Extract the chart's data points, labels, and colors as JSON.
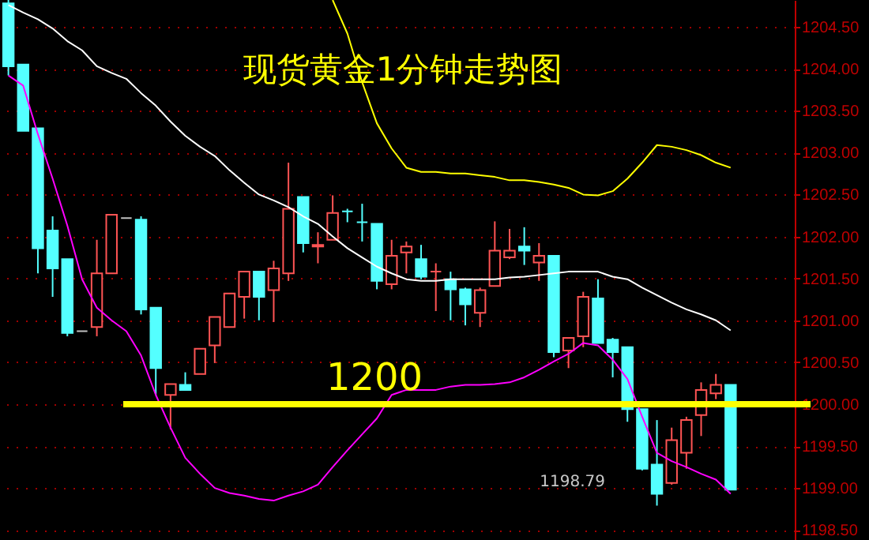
{
  "chart_data": {
    "type": "candlestick",
    "title": "现货黄金1分钟走势图",
    "categories": [
      null,
      null,
      null,
      null,
      null,
      null,
      null,
      null,
      null,
      null,
      null,
      null,
      null,
      null,
      null,
      null,
      null,
      null,
      null,
      null,
      null,
      null,
      null,
      null,
      null,
      null,
      null,
      null,
      null,
      null,
      null,
      null,
      null,
      null,
      null,
      null,
      null,
      null,
      null,
      null,
      null,
      null,
      null,
      null,
      null,
      null,
      null,
      null,
      null,
      null
    ],
    "ohlc": [
      [
        1204.78,
        1204.82,
        1203.92,
        1204.03
      ],
      [
        1204.05,
        1204.05,
        1203.26,
        1203.26
      ],
      [
        1203.29,
        1203.29,
        1201.56,
        1201.86
      ],
      [
        1202.07,
        1202.24,
        1201.28,
        1201.62
      ],
      [
        1201.73,
        1201.73,
        1200.81,
        1200.85
      ],
      [
        1200.87,
        1200.87,
        1200.87,
        1200.87
      ],
      [
        1200.92,
        1201.96,
        1200.81,
        1201.56
      ],
      [
        1201.56,
        1202.26,
        1201.56,
        1202.26
      ],
      [
        1202.22,
        1202.22,
        1202.22,
        1202.22
      ],
      [
        1202.2,
        1202.24,
        1201.07,
        1201.13
      ],
      [
        1201.15,
        1201.15,
        1200.11,
        1200.43
      ],
      [
        1200.11,
        1200.24,
        1199.7,
        1200.24
      ],
      [
        1200.23,
        1200.38,
        1200.17,
        1200.17
      ],
      [
        1200.36,
        1200.66,
        1200.36,
        1200.66
      ],
      [
        1200.7,
        1201.04,
        1200.49,
        1201.04
      ],
      [
        1200.92,
        1201.32,
        1200.92,
        1201.32
      ],
      [
        1201.28,
        1201.58,
        1201.02,
        1201.58
      ],
      [
        1201.58,
        1201.58,
        1201.0,
        1201.28
      ],
      [
        1201.36,
        1201.71,
        1200.98,
        1201.62
      ],
      [
        1201.56,
        1202.88,
        1201.47,
        1202.33
      ],
      [
        1202.47,
        1202.47,
        1201.81,
        1201.92
      ],
      [
        1201.88,
        1202.05,
        1201.68,
        1201.9
      ],
      [
        1201.96,
        1202.49,
        1201.96,
        1202.28
      ],
      [
        1202.3,
        1202.33,
        1202.17,
        1202.3
      ],
      [
        1202.17,
        1202.39,
        1201.94,
        1202.17
      ],
      [
        1202.15,
        1202.15,
        1201.37,
        1201.47
      ],
      [
        1201.43,
        1201.96,
        1201.37,
        1201.77
      ],
      [
        1201.81,
        1201.94,
        1201.56,
        1201.88
      ],
      [
        1201.73,
        1201.9,
        1201.49,
        1201.52
      ],
      [
        1201.58,
        1201.68,
        1201.11,
        1201.58
      ],
      [
        1201.49,
        1201.58,
        1201.0,
        1201.37
      ],
      [
        1201.37,
        1201.39,
        1200.94,
        1201.19
      ],
      [
        1201.09,
        1201.39,
        1200.92,
        1201.36
      ],
      [
        1201.41,
        1202.18,
        1201.41,
        1201.83
      ],
      [
        1201.75,
        1202.09,
        1201.73,
        1201.83
      ],
      [
        1201.88,
        1202.11,
        1201.66,
        1201.83
      ],
      [
        1201.69,
        1201.92,
        1201.47,
        1201.77
      ],
      [
        1201.77,
        1201.77,
        1200.56,
        1200.62
      ],
      [
        1200.64,
        1200.79,
        1200.43,
        1200.79
      ],
      [
        1200.81,
        1201.34,
        1200.68,
        1201.28
      ],
      [
        1201.26,
        1201.49,
        1200.73,
        1200.73
      ],
      [
        1200.77,
        1200.79,
        1200.32,
        1200.62
      ],
      [
        1200.68,
        1200.68,
        1199.79,
        1199.94
      ],
      [
        1199.94,
        1199.94,
        1199.21,
        1199.23
      ],
      [
        1199.28,
        1199.81,
        1198.79,
        1198.93
      ],
      [
        1199.06,
        1199.72,
        1199.04,
        1199.57
      ],
      [
        1199.42,
        1199.85,
        1199.23,
        1199.81
      ],
      [
        1199.87,
        1200.26,
        1199.62,
        1200.17
      ],
      [
        1200.13,
        1200.36,
        1200.06,
        1200.23
      ],
      [
        1200.23,
        1200.23,
        1198.98,
        1198.98
      ]
    ],
    "colors": [
      "#54ffff",
      "#54ffff",
      "#54ffff",
      "#54ffff",
      "#54ffff",
      "#c0c0c0",
      "#ff5454",
      "#ff5454",
      "#c0c0c0",
      "#54ffff",
      "#54ffff",
      "#ff5454",
      "#54ffff",
      "#ff5454",
      "#ff5454",
      "#ff5454",
      "#ff5454",
      "#54ffff",
      "#ff5454",
      "#ff5454",
      "#54ffff",
      "#ff5454",
      "#ff5454",
      "#54ffff",
      "#54ffff",
      "#54ffff",
      "#ff5454",
      "#ff5454",
      "#54ffff",
      "#ff5454",
      "#54ffff",
      "#54ffff",
      "#ff5454",
      "#ff5454",
      "#ff5454",
      "#54ffff",
      "#ff5454",
      "#54ffff",
      "#ff5454",
      "#ff5454",
      "#54ffff",
      "#54ffff",
      "#54ffff",
      "#54ffff",
      "#54ffff",
      "#ff5454",
      "#ff5454",
      "#ff5454",
      "#ff5454",
      "#54ffff"
    ],
    "series": [
      {
        "type": "line",
        "color": "#ffff00",
        "values": [
          null,
          null,
          null,
          null,
          null,
          null,
          null,
          null,
          null,
          null,
          null,
          null,
          null,
          null,
          null,
          null,
          null,
          null,
          null,
          null,
          null,
          null,
          1204.82,
          1204.42,
          1203.84,
          1203.35,
          1203.05,
          1202.82,
          1202.77,
          1202.77,
          1202.75,
          1202.75,
          1202.73,
          1202.71,
          1202.67,
          1202.67,
          1202.65,
          1202.62,
          1202.58,
          1202.5,
          1202.49,
          1202.54,
          1202.69,
          1202.88,
          1203.09,
          1203.07,
          1203.03,
          1202.97,
          1202.88,
          1202.82
        ]
      },
      {
        "type": "line",
        "color": "#ffffff",
        "values": [
          1204.76,
          1204.67,
          1204.59,
          1204.48,
          1204.33,
          1204.22,
          1204.03,
          1203.95,
          1203.88,
          1203.71,
          1203.56,
          1203.37,
          1203.2,
          1203.07,
          1202.96,
          1202.79,
          1202.64,
          1202.5,
          1202.43,
          1202.35,
          1202.24,
          1202.15,
          1202.0,
          1201.86,
          1201.75,
          1201.64,
          1201.56,
          1201.49,
          1201.47,
          1201.47,
          1201.49,
          1201.49,
          1201.49,
          1201.49,
          1201.51,
          1201.52,
          1201.54,
          1201.56,
          1201.58,
          1201.58,
          1201.58,
          1201.52,
          1201.49,
          1201.39,
          1201.3,
          1201.21,
          1201.13,
          1201.07,
          1201.0,
          1200.88
        ]
      },
      {
        "type": "line",
        "color": "#ff00ff",
        "values": [
          1203.92,
          1203.8,
          1203.22,
          1202.69,
          1202.13,
          1201.49,
          1201.15,
          1201.0,
          1200.87,
          1200.58,
          1200.11,
          1199.72,
          1199.36,
          1199.17,
          1199.0,
          1198.94,
          1198.91,
          1198.87,
          1198.85,
          1198.91,
          1198.96,
          1199.04,
          1199.25,
          1199.45,
          1199.64,
          1199.83,
          1200.11,
          1200.17,
          1200.17,
          1200.17,
          1200.21,
          1200.23,
          1200.23,
          1200.24,
          1200.26,
          1200.32,
          1200.41,
          1200.51,
          1200.6,
          1200.73,
          1200.7,
          1200.53,
          1200.3,
          1199.85,
          1199.42,
          1199.32,
          1199.25,
          1199.17,
          1199.1,
          1198.93
        ]
      }
    ],
    "ylim": [
      1198.38,
      1204.82
    ],
    "yticks": [
      {
        "value": 1198.5,
        "label": "1198.50"
      },
      {
        "value": 1199,
        "label": "1199.00"
      },
      {
        "value": 1199.5,
        "label": "1199.50"
      },
      {
        "value": 1200,
        "label": "1200.00"
      },
      {
        "value": 1200.5,
        "label": "1200.50"
      },
      {
        "value": 1201,
        "label": "1201.00"
      },
      {
        "value": 1201.5,
        "label": "1201.50"
      },
      {
        "value": 1202,
        "label": "1202.00"
      },
      {
        "value": 1202.5,
        "label": "1202.50"
      },
      {
        "value": 1203,
        "label": "1203.00"
      },
      {
        "value": 1203.5,
        "label": "1203.50"
      },
      {
        "value": 1204,
        "label": "1204.00"
      },
      {
        "value": 1204.5,
        "label": "1204.50"
      }
    ],
    "ref_lines": [
      {
        "axis": "y",
        "value": 1200,
        "label": "1200",
        "color": "#ffff00"
      }
    ],
    "annotations": [
      "1198.79"
    ],
    "grid": "y",
    "tick_labels": "y",
    "marker": "none",
    "line_style": "solid"
  }
}
